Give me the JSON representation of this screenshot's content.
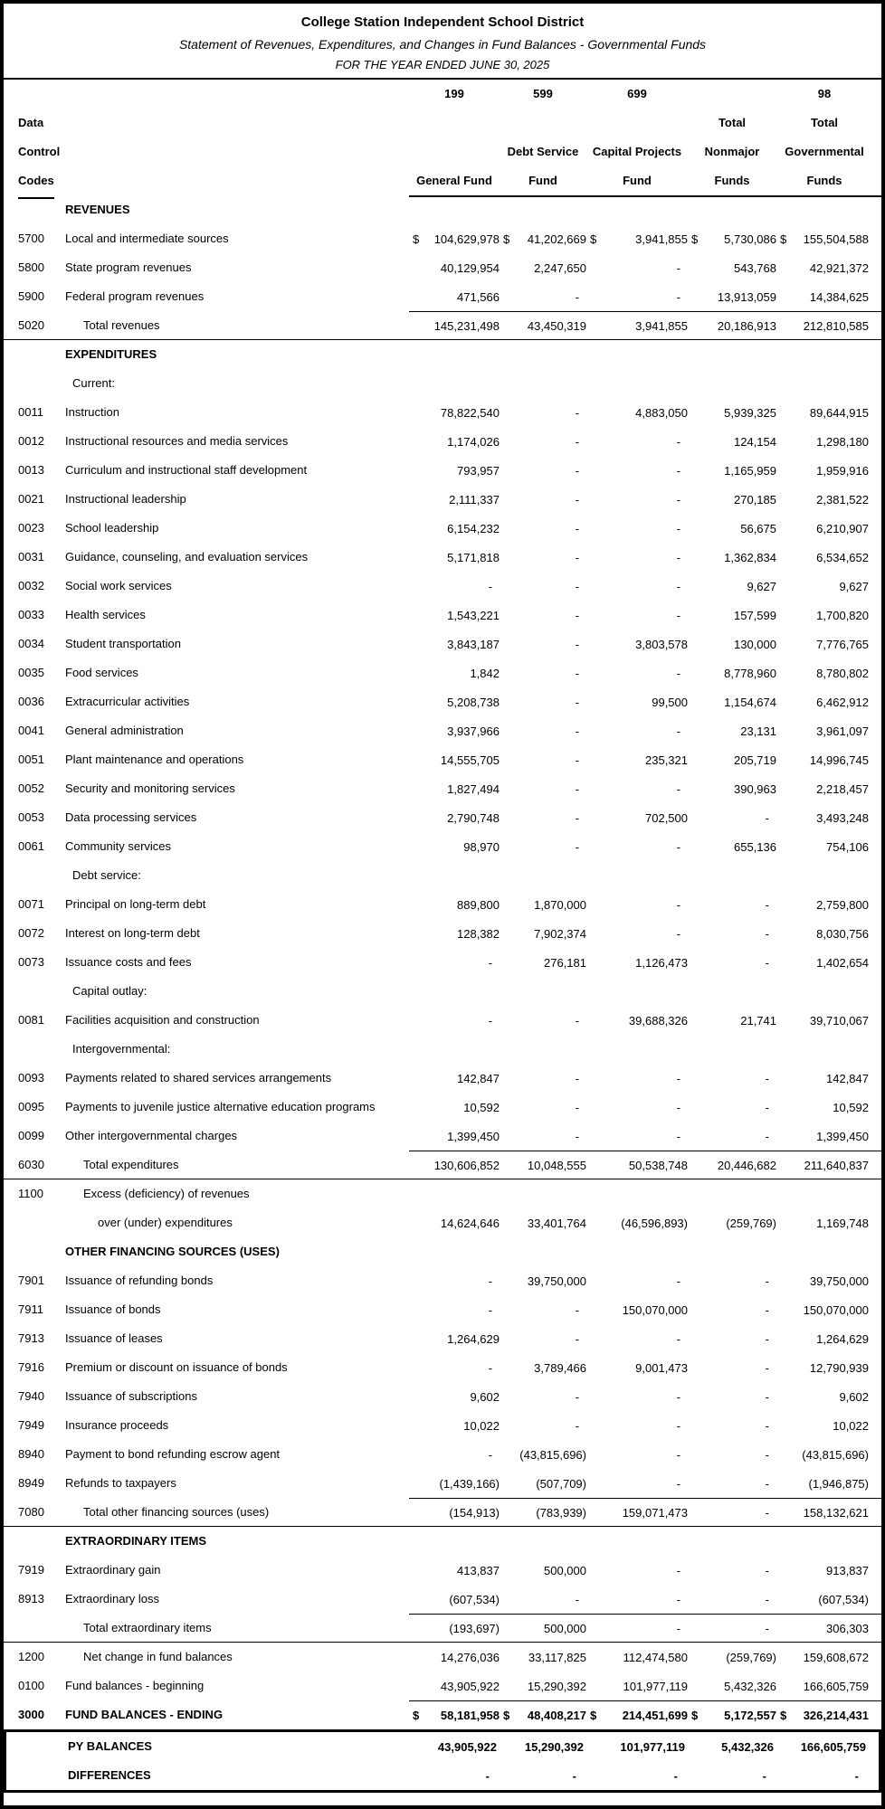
{
  "header": {
    "title": "College Station Independent School District",
    "subtitle": "Statement of Revenues, Expenditures, and Changes in Fund Balances - Governmental Funds",
    "period": "FOR THE YEAR ENDED JUNE 30, 2025"
  },
  "colors": {
    "text": "#000000",
    "background": "#ffffff",
    "rule": "#000000"
  },
  "table_header": {
    "lines": [
      {
        "left": "",
        "cells": [
          "199",
          "599",
          "699",
          "",
          "98"
        ]
      },
      {
        "left": "Data",
        "cells": [
          "",
          "",
          "",
          "Total",
          "Total"
        ]
      },
      {
        "left": "Control",
        "cells": [
          "",
          "Debt Service",
          "Capital Projects",
          "Nonmajor",
          "Governmental"
        ]
      },
      {
        "left": "Codes",
        "cells": [
          "General Fund",
          "Fund",
          "Fund",
          "Funds",
          "Funds"
        ],
        "underline": true
      }
    ]
  },
  "table": {
    "rows": [
      {
        "t": "section",
        "label": "REVENUES"
      },
      {
        "t": "data",
        "code": "5700",
        "label": "Local and intermediate sources",
        "dollar": true,
        "v": [
          "104,629,978",
          "41,202,669",
          "3,941,855",
          "5,730,086",
          "155,504,588"
        ]
      },
      {
        "t": "data",
        "code": "5800",
        "label": "State program revenues",
        "v": [
          "40,129,954",
          "2,247,650",
          "-",
          "543,768",
          "42,921,372"
        ]
      },
      {
        "t": "data",
        "code": "5900",
        "label": "Federal program revenues",
        "v": [
          "471,566",
          "-",
          "-",
          "13,913,059",
          "14,384,625"
        ]
      },
      {
        "t": "total",
        "code": "5020",
        "label": "Total revenues",
        "v": [
          "145,231,498",
          "43,450,319",
          "3,941,855",
          "20,186,913",
          "212,810,585"
        ]
      },
      {
        "t": "section",
        "label": "EXPENDITURES"
      },
      {
        "t": "sub",
        "label": "Current:"
      },
      {
        "t": "data",
        "code": "0011",
        "label": "Instruction",
        "v": [
          "78,822,540",
          "-",
          "4,883,050",
          "5,939,325",
          "89,644,915"
        ]
      },
      {
        "t": "data",
        "code": "0012",
        "label": "Instructional resources and media services",
        "v": [
          "1,174,026",
          "-",
          "-",
          "124,154",
          "1,298,180"
        ]
      },
      {
        "t": "data",
        "code": "0013",
        "label": "Curriculum and instructional staff development",
        "v": [
          "793,957",
          "-",
          "-",
          "1,165,959",
          "1,959,916"
        ]
      },
      {
        "t": "data",
        "code": "0021",
        "label": "Instructional leadership",
        "v": [
          "2,111,337",
          "-",
          "-",
          "270,185",
          "2,381,522"
        ]
      },
      {
        "t": "data",
        "code": "0023",
        "label": "School leadership",
        "v": [
          "6,154,232",
          "-",
          "-",
          "56,675",
          "6,210,907"
        ]
      },
      {
        "t": "data",
        "code": "0031",
        "label": "Guidance, counseling, and evaluation services",
        "v": [
          "5,171,818",
          "-",
          "-",
          "1,362,834",
          "6,534,652"
        ]
      },
      {
        "t": "data",
        "code": "0032",
        "label": "Social work services",
        "v": [
          "-",
          "-",
          "-",
          "9,627",
          "9,627"
        ]
      },
      {
        "t": "data",
        "code": "0033",
        "label": "Health services",
        "v": [
          "1,543,221",
          "-",
          "-",
          "157,599",
          "1,700,820"
        ]
      },
      {
        "t": "data",
        "code": "0034",
        "label": "Student transportation",
        "v": [
          "3,843,187",
          "-",
          "3,803,578",
          "130,000",
          "7,776,765"
        ]
      },
      {
        "t": "data",
        "code": "0035",
        "label": "Food services",
        "v": [
          "1,842",
          "-",
          "-",
          "8,778,960",
          "8,780,802"
        ]
      },
      {
        "t": "data",
        "code": "0036",
        "label": "Extracurricular activities",
        "v": [
          "5,208,738",
          "-",
          "99,500",
          "1,154,674",
          "6,462,912"
        ]
      },
      {
        "t": "data",
        "code": "0041",
        "label": "General administration",
        "v": [
          "3,937,966",
          "-",
          "-",
          "23,131",
          "3,961,097"
        ]
      },
      {
        "t": "data",
        "code": "0051",
        "label": "Plant maintenance and operations",
        "v": [
          "14,555,705",
          "-",
          "235,321",
          "205,719",
          "14,996,745"
        ]
      },
      {
        "t": "data",
        "code": "0052",
        "label": "Security and monitoring services",
        "v": [
          "1,827,494",
          "-",
          "-",
          "390,963",
          "2,218,457"
        ]
      },
      {
        "t": "data",
        "code": "0053",
        "label": "Data processing services",
        "v": [
          "2,790,748",
          "-",
          "702,500",
          "-",
          "3,493,248"
        ]
      },
      {
        "t": "data",
        "code": "0061",
        "label": "Community services",
        "v": [
          "98,970",
          "-",
          "-",
          "655,136",
          "754,106"
        ]
      },
      {
        "t": "sub",
        "label": "Debt service:"
      },
      {
        "t": "data",
        "code": "0071",
        "label": "Principal on long-term debt",
        "v": [
          "889,800",
          "1,870,000",
          "-",
          "-",
          "2,759,800"
        ]
      },
      {
        "t": "data",
        "code": "0072",
        "label": "Interest on long-term debt",
        "v": [
          "128,382",
          "7,902,374",
          "-",
          "-",
          "8,030,756"
        ]
      },
      {
        "t": "data",
        "code": "0073",
        "label": "Issuance costs and fees",
        "v": [
          "-",
          "276,181",
          "1,126,473",
          "-",
          "1,402,654"
        ]
      },
      {
        "t": "sub",
        "label": "Capital outlay:"
      },
      {
        "t": "data",
        "code": "0081",
        "label": "Facilities acquisition and construction",
        "v": [
          "-",
          "-",
          "39,688,326",
          "21,741",
          "39,710,067"
        ]
      },
      {
        "t": "sub",
        "label": "Intergovernmental:"
      },
      {
        "t": "data",
        "code": "0093",
        "label": "Payments related to shared services arrangements",
        "v": [
          "142,847",
          "-",
          "-",
          "-",
          "142,847"
        ]
      },
      {
        "t": "data",
        "code": "0095",
        "label": "Payments to juvenile justice alternative education programs",
        "v": [
          "10,592",
          "-",
          "-",
          "-",
          "10,592"
        ]
      },
      {
        "t": "data",
        "code": "0099",
        "label": "Other intergovernmental charges",
        "v": [
          "1,399,450",
          "-",
          "-",
          "-",
          "1,399,450"
        ]
      },
      {
        "t": "total",
        "code": "6030",
        "label": "Total expenditures",
        "v": [
          "130,606,852",
          "10,048,555",
          "50,538,748",
          "20,446,682",
          "211,640,837"
        ]
      },
      {
        "t": "cont",
        "code": "1100",
        "label": "Excess (deficiency) of revenues"
      },
      {
        "t": "cont2",
        "label": "over (under) expenditures",
        "v": [
          "14,624,646",
          "33,401,764",
          "(46,596,893)",
          "(259,769)",
          "1,169,748"
        ]
      },
      {
        "t": "section",
        "label": "OTHER FINANCING SOURCES (USES)"
      },
      {
        "t": "data",
        "code": "7901",
        "label": "Issuance of refunding bonds",
        "v": [
          "-",
          "39,750,000",
          "-",
          "-",
          "39,750,000"
        ]
      },
      {
        "t": "data",
        "code": "7911",
        "label": "Issuance of bonds",
        "v": [
          "-",
          "-",
          "150,070,000",
          "-",
          "150,070,000"
        ]
      },
      {
        "t": "data",
        "code": "7913",
        "label": "Issuance of leases",
        "v": [
          "1,264,629",
          "-",
          "-",
          "-",
          "1,264,629"
        ]
      },
      {
        "t": "data",
        "code": "7916",
        "label": "Premium or discount on issuance of bonds",
        "v": [
          "-",
          "3,789,466",
          "9,001,473",
          "-",
          "12,790,939"
        ]
      },
      {
        "t": "data",
        "code": "7940",
        "label": "Issuance of subscriptions",
        "v": [
          "9,602",
          "-",
          "-",
          "-",
          "9,602"
        ]
      },
      {
        "t": "data",
        "code": "7949",
        "label": "Insurance proceeds",
        "v": [
          "10,022",
          "-",
          "-",
          "-",
          "10,022"
        ]
      },
      {
        "t": "data",
        "code": "8940",
        "label": "Payment to bond refunding escrow agent",
        "v": [
          "-",
          "(43,815,696)",
          "-",
          "-",
          "(43,815,696)"
        ]
      },
      {
        "t": "data",
        "code": "8949",
        "label": "Refunds to taxpayers",
        "v": [
          "(1,439,166)",
          "(507,709)",
          "-",
          "-",
          "(1,946,875)"
        ]
      },
      {
        "t": "total",
        "code": "7080",
        "label": "Total other financing sources (uses)",
        "v": [
          "(154,913)",
          "(783,939)",
          "159,071,473",
          "-",
          "158,132,621"
        ]
      },
      {
        "t": "section",
        "label": "EXTRAORDINARY ITEMS"
      },
      {
        "t": "data",
        "code": "7919",
        "label": "Extraordinary gain",
        "v": [
          "413,837",
          "500,000",
          "-",
          "-",
          "913,837"
        ]
      },
      {
        "t": "data",
        "code": "8913",
        "label": "Extraordinary loss",
        "v": [
          "(607,534)",
          "-",
          "-",
          "-",
          "(607,534)"
        ]
      },
      {
        "t": "total",
        "code": "",
        "label": "Total extraordinary items",
        "v": [
          "(193,697)",
          "500,000",
          "-",
          "-",
          "306,303"
        ]
      },
      {
        "t": "calc",
        "code": "1200",
        "label": "Net change in fund balances",
        "v": [
          "14,276,036",
          "33,117,825",
          "112,474,580",
          "(259,769)",
          "159,608,672"
        ]
      },
      {
        "t": "data",
        "code": "0100",
        "label": "Fund balances - beginning",
        "v": [
          "43,905,922",
          "15,290,392",
          "101,977,119",
          "5,432,326",
          "166,605,759"
        ]
      },
      {
        "t": "ending",
        "code": "3000",
        "label": "FUND BALANCES - ENDING",
        "dollar": true,
        "v": [
          "58,181,958",
          "48,408,217",
          "214,451,699",
          "5,172,557",
          "326,214,431"
        ]
      }
    ]
  },
  "footer": {
    "rows": [
      {
        "label": "PY BALANCES",
        "v": [
          "43,905,922",
          "15,290,392",
          "101,977,119",
          "5,432,326",
          "166,605,759"
        ]
      },
      {
        "label": "DIFFERENCES",
        "v": [
          "-",
          "-",
          "-",
          "-",
          "-"
        ]
      }
    ]
  }
}
